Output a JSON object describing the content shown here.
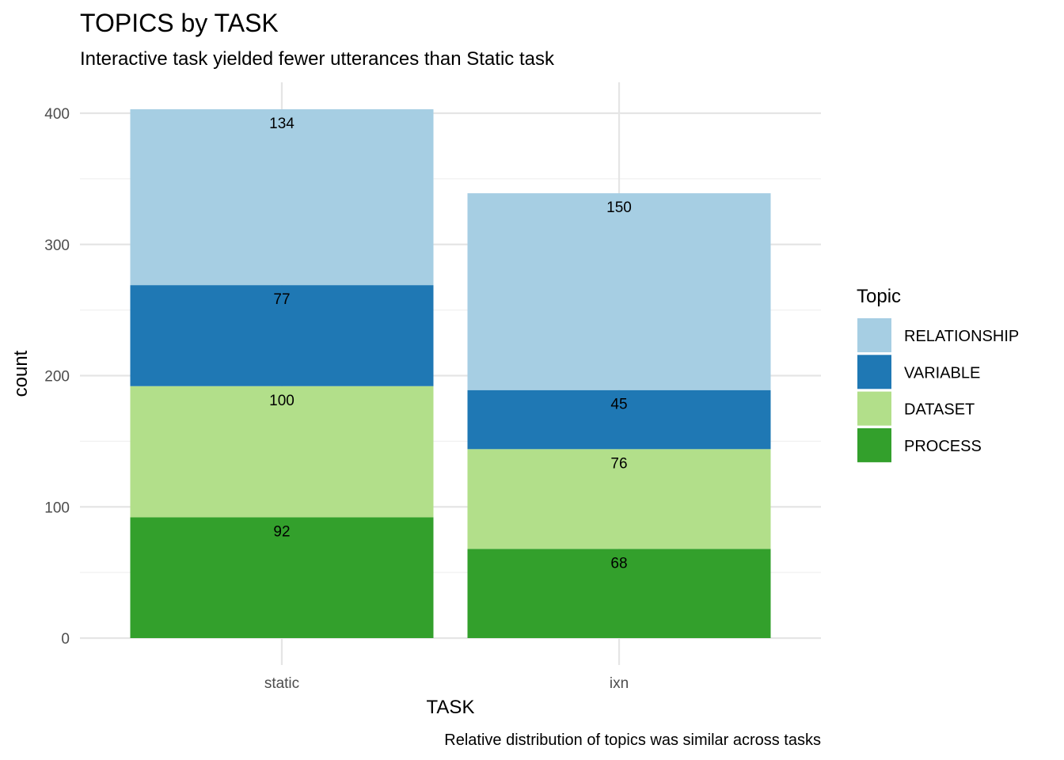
{
  "chart_data": {
    "type": "bar",
    "stacked": true,
    "title": "TOPICS by TASK",
    "subtitle": "Interactive task yielded fewer utterances than Static task",
    "caption": "Relative distribution of topics was similar across tasks",
    "xlabel": "TASK",
    "ylabel": "count",
    "categories": [
      "static",
      "ixn"
    ],
    "ylim": [
      0,
      410
    ],
    "yticks": [
      0,
      100,
      200,
      300,
      400
    ],
    "grid": true,
    "legend": {
      "title": "Topic",
      "placement": "right"
    },
    "series": [
      {
        "name": "PROCESS",
        "color": "#33a02c",
        "values": [
          92,
          68
        ]
      },
      {
        "name": "DATASET",
        "color": "#b2df8a",
        "values": [
          100,
          76
        ]
      },
      {
        "name": "VARIABLE",
        "color": "#1f78b4",
        "values": [
          77,
          45
        ]
      },
      {
        "name": "RELATIONSHIP",
        "color": "#a6cee3",
        "values": [
          134,
          150
        ]
      }
    ],
    "legend_order": [
      "RELATIONSHIP",
      "VARIABLE",
      "DATASET",
      "PROCESS"
    ]
  }
}
